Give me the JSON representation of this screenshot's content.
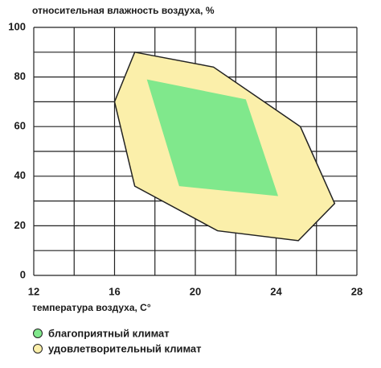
{
  "chart_data": {
    "type": "polygon",
    "title": "относительная влажность воздуха, %",
    "x_label": "температура воздуха, С°",
    "xlim": [
      12,
      28
    ],
    "xticks": [
      12,
      16,
      20,
      24,
      28
    ],
    "xminor": [
      14,
      18,
      22,
      26
    ],
    "ylim": [
      0,
      100
    ],
    "yticks": [
      0,
      20,
      40,
      60,
      80,
      100
    ],
    "yminor": [
      10,
      30,
      50,
      70,
      90
    ],
    "grid": true,
    "series": [
      {
        "name": "удовлетворительный климат",
        "color": "#fbefaa",
        "x": [
          17,
          20.9,
          25.2,
          26.9,
          25.1,
          21.1,
          17,
          16
        ],
        "values": [
          90,
          84,
          60,
          29,
          14,
          18,
          36,
          70
        ]
      },
      {
        "name": "благоприятный климат",
        "color": "#80e88c",
        "x": [
          17.6,
          22.5,
          24.1,
          19.2
        ],
        "values": [
          79,
          71,
          32,
          36
        ]
      }
    ],
    "legend_order": [
      1,
      0
    ]
  }
}
